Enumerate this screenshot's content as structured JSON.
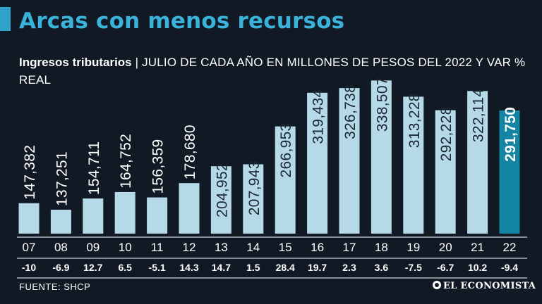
{
  "header": {
    "title": "Arcas con menos recursos",
    "subtitle_bold": "Ingresos tributarios",
    "subtitle_rest": " | JULIO DE CADA AÑO EN MILLONES DE PESOS DEL 2022 Y VAR % REAL"
  },
  "footer": {
    "source": "FUENTE: SHCP",
    "brand": "EL ECONOMISTA"
  },
  "colors": {
    "background": "#111a24",
    "bar": "#b5d9e6",
    "highlight_bar": "#1384a2",
    "title": "#3ab3dc",
    "label": "#ffffff"
  },
  "chart_data": {
    "type": "bar",
    "title": "Ingresos tributarios",
    "xlabel": "",
    "ylabel": "Millones de pesos del 2022",
    "categories": [
      "07",
      "08",
      "09",
      "10",
      "11",
      "12",
      "13",
      "14",
      "15",
      "16",
      "17",
      "18",
      "19",
      "20",
      "21",
      "22"
    ],
    "values": [
      147382,
      137251,
      154711,
      164752,
      156359,
      178680,
      204952,
      207943,
      266953,
      319434,
      326738,
      338507,
      313228,
      292228,
      322114,
      291750
    ],
    "value_labels": [
      "147,382",
      "137,251",
      "154,711",
      "164,752",
      "156,359",
      "178,680",
      "204,952",
      "207,943",
      "266,953",
      "319,434",
      "326,738",
      "338,507",
      "313,228",
      "292,228",
      "322,114",
      "291,750"
    ],
    "var_real": [
      "-10",
      "-6.9",
      "12.7",
      "6.5",
      "-5.1",
      "14.3",
      "14.7",
      "1.5",
      "28.4",
      "19.7",
      "2.3",
      "3.6",
      "-7.5",
      "-6.7",
      "10.2",
      "-9.4"
    ],
    "highlight_index": 15,
    "ylim": [
      100000,
      340000
    ]
  }
}
